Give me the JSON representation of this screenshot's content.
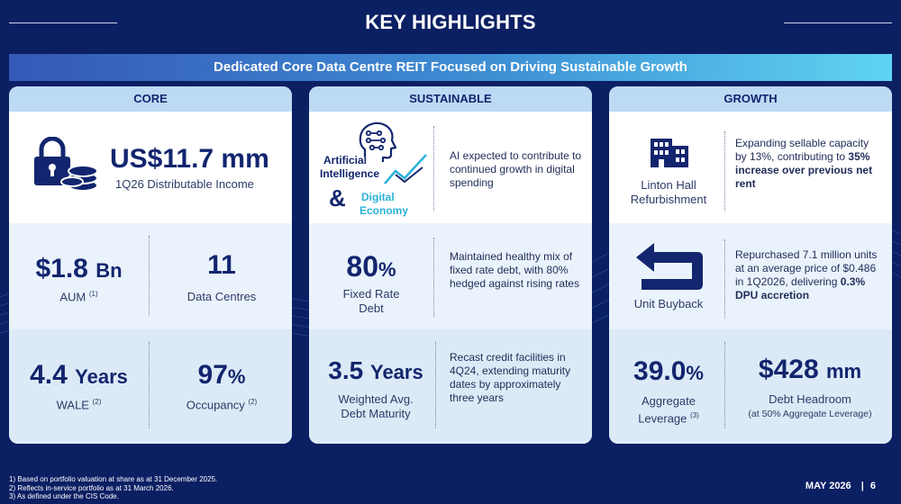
{
  "title": "KEY HIGHLIGHTS",
  "banner": "Dedicated Core Data Centre REIT Focused on Driving Sustainable Growth",
  "core": {
    "header": "CORE",
    "income_value": "US$11.7 mm",
    "income_label": "1Q26 Distributable Income",
    "aum_value": "$1.8",
    "aum_unit": "Bn",
    "aum_label": "AUM",
    "aum_note": "(1)",
    "dc_value": "11",
    "dc_label": "Data Centres",
    "wale_value": "4.4",
    "wale_unit": "Years",
    "wale_label": "WALE",
    "wale_note": "(2)",
    "occ_value": "97",
    "occ_unit": "%",
    "occ_label": "Occupancy",
    "occ_note": "(2)"
  },
  "sustainable": {
    "header": "SUSTAINABLE",
    "ai_label_1": "Artificial",
    "ai_label_2": "Intelligence",
    "amp": "&",
    "de_label_1": "Digital",
    "de_label_2": "Economy",
    "ai_desc": "AI expected to contribute to continued growth in digital spending",
    "fixed_value": "80",
    "fixed_unit": "%",
    "fixed_label_1": "Fixed Rate",
    "fixed_label_2": "Debt",
    "fixed_desc": "Maintained healthy mix of fixed rate debt, with 80% hedged against rising rates",
    "wadm_value": "3.5",
    "wadm_unit": "Years",
    "wadm_label_1": "Weighted Avg.",
    "wadm_label_2": "Debt Maturity",
    "wadm_desc": "Recast credit facilities in 4Q24, extending maturity dates by approximately three years"
  },
  "growth": {
    "header": "GROWTH",
    "linton_label_1": "Linton Hall",
    "linton_label_2": "Refurbishment",
    "linton_desc": "Expanding sellable capacity by 13%, contributing to",
    "linton_desc_bold": "35% increase over previous net rent",
    "buyback_label": "Unit Buyback",
    "buyback_desc": "Repurchased 7.1 million units at an average price of $0.486 in 1Q2026, delivering",
    "buyback_desc_bold": "0.3% DPU accretion",
    "leverage_value": "39.0",
    "leverage_unit": "%",
    "leverage_label_1": "Aggregate",
    "leverage_label_2": "Leverage",
    "leverage_note": "(3)",
    "headroom_value": "$428",
    "headroom_unit": "mm",
    "headroom_label": "Debt Headroom",
    "headroom_sub": "(at 50% Aggregate Leverage)"
  },
  "footnotes": [
    "1)    Based on portfolio valuation at share as at 31 December 2025.",
    "2)    Reflects in-service portfolio as at 31 March 2026.",
    "3)    As defined under the CIS Code."
  ],
  "footer": {
    "date": "MAY 2026",
    "sep": "|",
    "page": "6"
  },
  "colors": {
    "background": "#0b1f63",
    "navy_text": "#12256e",
    "header_blue": "#bcdaf3",
    "accent_cyan": "#2bb3d9"
  }
}
